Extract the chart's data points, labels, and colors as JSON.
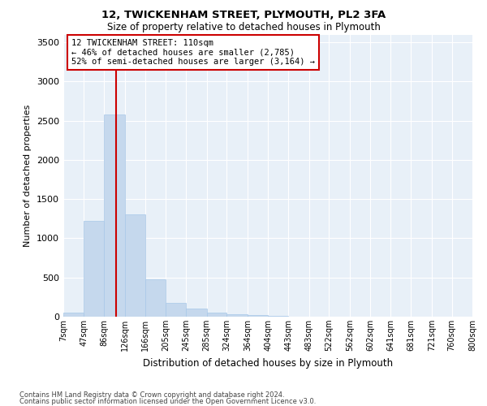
{
  "title1": "12, TWICKENHAM STREET, PLYMOUTH, PL2 3FA",
  "title2": "Size of property relative to detached houses in Plymouth",
  "xlabel": "Distribution of detached houses by size in Plymouth",
  "ylabel": "Number of detached properties",
  "bar_color": "#c5d8ed",
  "bar_edgecolor": "#a8c8e8",
  "background_color": "#e8f0f8",
  "vline_x": 110,
  "vline_color": "#cc0000",
  "annotation_line1": "12 TWICKENHAM STREET: 110sqm",
  "annotation_line2": "← 46% of detached houses are smaller (2,785)",
  "annotation_line3": "52% of semi-detached houses are larger (3,164) →",
  "annotation_box_color": "#cc0000",
  "bin_edges": [
    7,
    47,
    86,
    126,
    166,
    205,
    245,
    285,
    324,
    364,
    404,
    443,
    483,
    522,
    562,
    602,
    641,
    681,
    721,
    760,
    800
  ],
  "bin_labels": [
    "7sqm",
    "47sqm",
    "86sqm",
    "126sqm",
    "166sqm",
    "205sqm",
    "245sqm",
    "285sqm",
    "324sqm",
    "364sqm",
    "404sqm",
    "443sqm",
    "483sqm",
    "522sqm",
    "562sqm",
    "602sqm",
    "641sqm",
    "681sqm",
    "721sqm",
    "760sqm",
    "800sqm"
  ],
  "bar_heights": [
    50,
    1220,
    2580,
    1310,
    480,
    175,
    105,
    50,
    30,
    20,
    10,
    5,
    0,
    0,
    0,
    0,
    0,
    0,
    0,
    0
  ],
  "ylim": [
    0,
    3600
  ],
  "yticks": [
    0,
    500,
    1000,
    1500,
    2000,
    2500,
    3000,
    3500
  ],
  "footnote1": "Contains HM Land Registry data © Crown copyright and database right 2024.",
  "footnote2": "Contains public sector information licensed under the Open Government Licence v3.0."
}
